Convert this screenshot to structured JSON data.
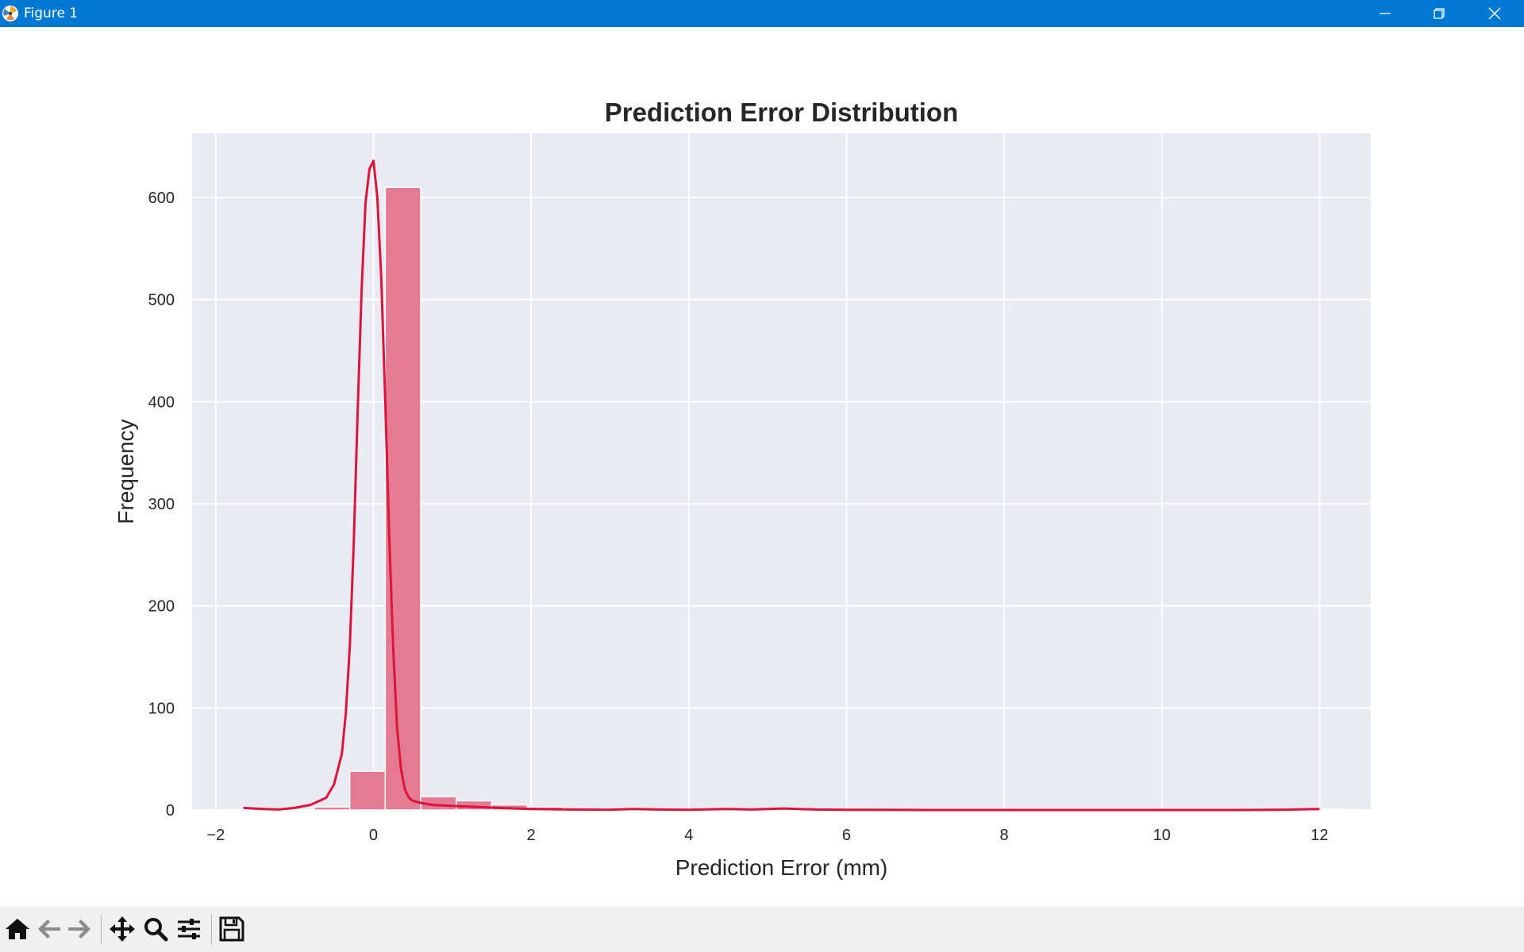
{
  "window": {
    "title": "Figure 1",
    "controls": [
      "minimize",
      "restore",
      "close"
    ]
  },
  "toolbar": {
    "buttons": [
      "home-icon",
      "back-arrow-icon",
      "forward-arrow-icon",
      "pan-icon",
      "zoom-icon",
      "configure-subplots-icon",
      "save-icon"
    ]
  },
  "colors": {
    "titlebar": "#0078d4",
    "plot_background": "#eaeaf2",
    "grid": "#ffffff",
    "bars": "#e57b92",
    "kde_line": "#dc143c"
  },
  "chart_data": {
    "type": "bar",
    "title": "Prediction Error Distribution",
    "xlabel": "Prediction Error (mm)",
    "ylabel": "Frequency",
    "xlim": [
      -2.3,
      12.65
    ],
    "ylim": [
      0,
      663
    ],
    "xticks": [
      -2,
      0,
      2,
      4,
      6,
      8,
      10,
      12
    ],
    "xtick_labels": [
      "−2",
      "0",
      "2",
      "4",
      "6",
      "8",
      "10",
      "12"
    ],
    "yticks": [
      0,
      100,
      200,
      300,
      400,
      500,
      600
    ],
    "grid": true,
    "legend": "none",
    "histogram": {
      "bin_edges": [
        -1.65,
        -1.2,
        -0.75,
        -0.3,
        0.15,
        0.6,
        1.05,
        1.5,
        1.95,
        2.4,
        2.85,
        3.3,
        3.75,
        4.2,
        4.65,
        5.1,
        5.55,
        6.0,
        6.45,
        6.9,
        7.35,
        7.8,
        8.25,
        8.7,
        9.15,
        9.6,
        10.05,
        10.5,
        10.95,
        11.4,
        11.85,
        12.3
      ],
      "counts": [
        1,
        0,
        3,
        38,
        610,
        13,
        9,
        5,
        3,
        1,
        1,
        1,
        0,
        1,
        1,
        1,
        0,
        0,
        0,
        0,
        0,
        0,
        0,
        0,
        0,
        0,
        0,
        0,
        0,
        0,
        1
      ]
    },
    "kde": {
      "x": [
        -1.65,
        -1.4,
        -1.2,
        -1.0,
        -0.8,
        -0.6,
        -0.5,
        -0.4,
        -0.35,
        -0.3,
        -0.25,
        -0.2,
        -0.15,
        -0.1,
        -0.05,
        0.0,
        0.05,
        0.1,
        0.15,
        0.2,
        0.25,
        0.3,
        0.35,
        0.4,
        0.45,
        0.5,
        0.6,
        0.75,
        1.0,
        1.3,
        1.6,
        2.0,
        2.5,
        3.0,
        3.3,
        3.6,
        4.0,
        4.5,
        4.8,
        5.2,
        5.6,
        6.0,
        7.0,
        8.0,
        9.0,
        10.0,
        11.0,
        11.6,
        12.0
      ],
      "y": [
        2,
        1,
        0.5,
        2,
        5,
        12,
        25,
        55,
        95,
        160,
        260,
        390,
        510,
        595,
        628,
        636,
        600,
        520,
        400,
        270,
        160,
        80,
        40,
        20,
        12,
        9,
        7,
        5,
        4,
        3,
        2,
        1,
        0.5,
        0.3,
        1,
        0.5,
        0.2,
        1,
        0.5,
        1.5,
        0.5,
        0.2,
        0,
        0,
        0,
        0,
        0,
        0.3,
        1
      ]
    }
  }
}
